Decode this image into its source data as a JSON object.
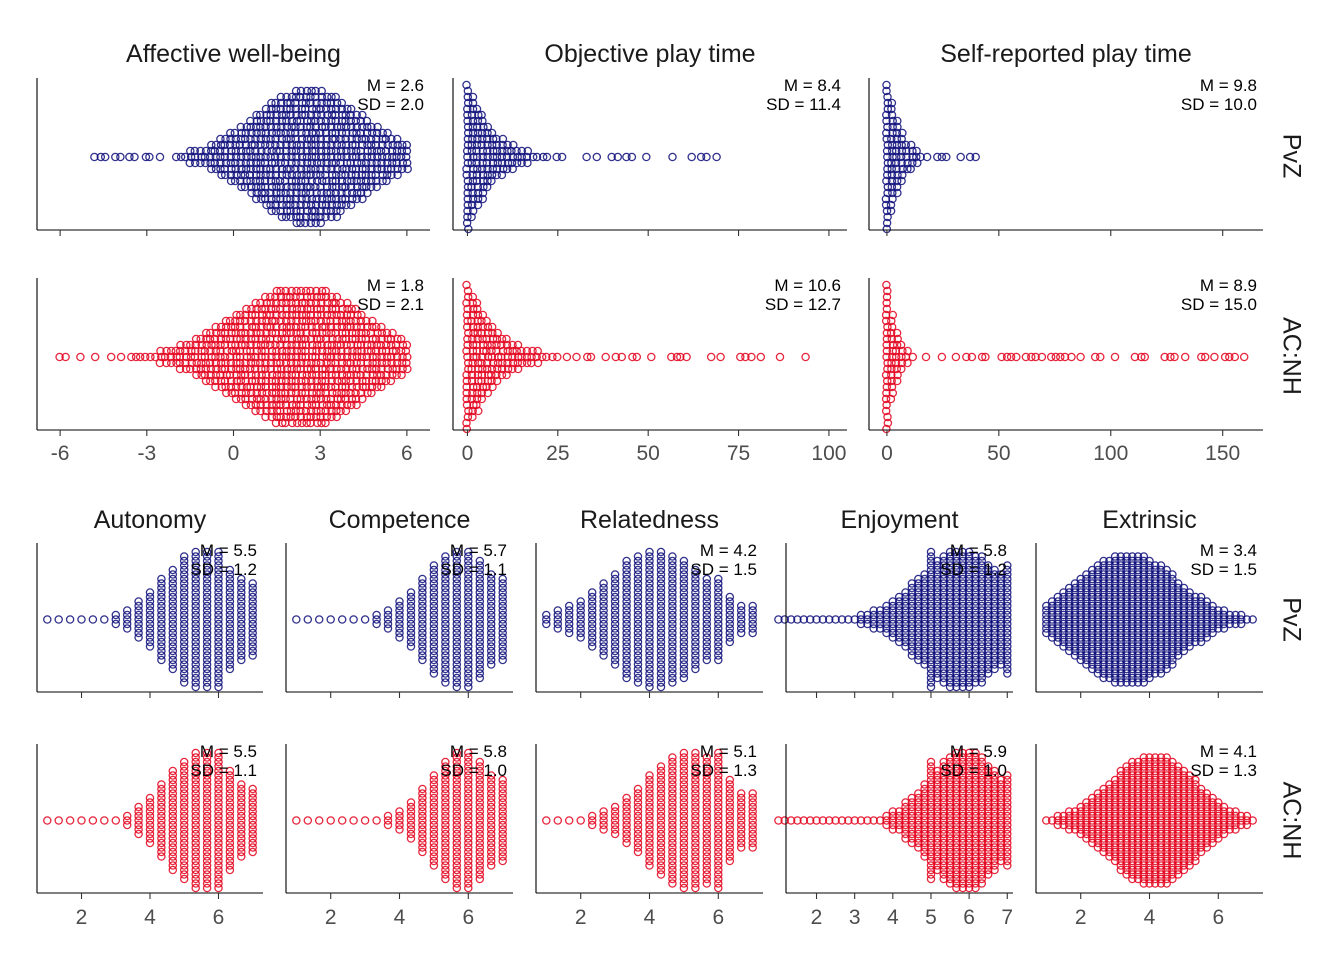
{
  "colors": {
    "PvZ": "#0d0d7a",
    "AC:NH": "#e3001b"
  },
  "chart_data": [
    {
      "type": "scatter",
      "subtype": "beeswarm",
      "rows": [
        "PvZ",
        "AC:NH"
      ],
      "panels": [
        {
          "title": "Affective well-being",
          "xlim": [
            -6.8,
            6.8
          ],
          "ticks": [
            -6,
            -3,
            0,
            3,
            6
          ],
          "tick_labels": [
            "-6",
            "-3",
            "0",
            "3",
            "6"
          ],
          "stats": {
            "PvZ": {
              "M": "M = 2.6",
              "SD": "SD = 2.0"
            },
            "AC:NH": {
              "M": "M = 1.8",
              "SD": "SD = 2.1"
            }
          },
          "dist": {
            "PvZ": {
              "mode": 2.6,
              "range": [
                -4.8,
                6
              ],
              "n": 1000
            },
            "AC:NH": {
              "mode": 2.3,
              "range": [
                -6,
                6
              ],
              "n": 5000
            }
          }
        },
        {
          "title": "Objective play time",
          "xlim": [
            -4,
            105
          ],
          "ticks": [
            0,
            25,
            50,
            75,
            100
          ],
          "tick_labels": [
            "0",
            "25",
            "50",
            "75",
            "100"
          ],
          "stats": {
            "PvZ": {
              "M": "M =  8.4",
              "SD": "SD = 11.4"
            },
            "AC:NH": {
              "M": "M = 10.6",
              "SD": "SD = 12.7"
            }
          },
          "dist": {
            "PvZ": {
              "mode": 1,
              "range": [
                0,
                69
              ],
              "n": 2000
            },
            "AC:NH": {
              "mode": 1,
              "range": [
                0,
                99
              ],
              "n": 5000
            }
          }
        },
        {
          "title": "Self-reported play time",
          "xlim": [
            -8,
            168
          ],
          "ticks": [
            0,
            50,
            100,
            150
          ],
          "tick_labels": [
            "0",
            "50",
            "100",
            "150"
          ],
          "stats": {
            "PvZ": {
              "M": "M = 9.8",
              "SD": "SD = 10.0"
            },
            "AC:NH": {
              "M": "M = 8.9",
              "SD": "SD = 15.0"
            }
          },
          "dist": {
            "PvZ": {
              "mode": 2,
              "range": [
                0,
                42
              ],
              "n": 1000
            },
            "AC:NH": {
              "mode": 1,
              "range": [
                0,
                160
              ],
              "n": 3000
            }
          }
        }
      ]
    },
    {
      "type": "scatter",
      "subtype": "beeswarm",
      "rows": [
        "PvZ",
        "AC:NH"
      ],
      "panels": [
        {
          "title": "Autonomy",
          "xlim": [
            0.7,
            7.3
          ],
          "ticks": [
            2,
            4,
            6
          ],
          "tick_labels": [
            "2",
            "4",
            "6"
          ],
          "stats": {
            "PvZ": {
              "M": "M = 5.5",
              "SD": "SD = 1.2"
            },
            "AC:NH": {
              "M": "M = 5.5",
              "SD": "SD = 1.1"
            }
          }
        },
        {
          "title": "Competence",
          "xlim": [
            0.7,
            7.3
          ],
          "ticks": [
            2,
            4,
            6
          ],
          "tick_labels": [
            "2",
            "4",
            "6"
          ],
          "stats": {
            "PvZ": {
              "M": "M = 5.7",
              "SD": "SD = 1.1"
            },
            "AC:NH": {
              "M": "M = 5.8",
              "SD": "SD = 1.0"
            }
          }
        },
        {
          "title": "Relatedness",
          "xlim": [
            0.7,
            7.3
          ],
          "ticks": [
            2,
            4,
            6
          ],
          "tick_labels": [
            "2",
            "4",
            "6"
          ],
          "stats": {
            "PvZ": {
              "M": "M = 4.2",
              "SD": "SD = 1.5"
            },
            "AC:NH": {
              "M": "M = 5.1",
              "SD": "SD = 1.3"
            }
          }
        },
        {
          "title": "Enjoyment",
          "xlim": [
            1.2,
            7.15
          ],
          "ticks": [
            2,
            3,
            4,
            5,
            6,
            7
          ],
          "tick_labels": [
            "2",
            "3",
            "4",
            "5",
            "6",
            "7"
          ],
          "stats": {
            "PvZ": {
              "M": "M = 5.8",
              "SD": "SD = 1.2"
            },
            "AC:NH": {
              "M": "M = 5.9",
              "SD": "SD = 1.0"
            }
          }
        },
        {
          "title": "Extrinsic",
          "xlim": [
            0.7,
            7.3
          ],
          "ticks": [
            2,
            4,
            6
          ],
          "tick_labels": [
            "2",
            "4",
            "6"
          ],
          "stats": {
            "PvZ": {
              "M": "M = 3.4",
              "SD": "SD = 1.5"
            },
            "AC:NH": {
              "M": "M = 4.1",
              "SD": "SD = 1.3"
            }
          }
        }
      ]
    }
  ]
}
